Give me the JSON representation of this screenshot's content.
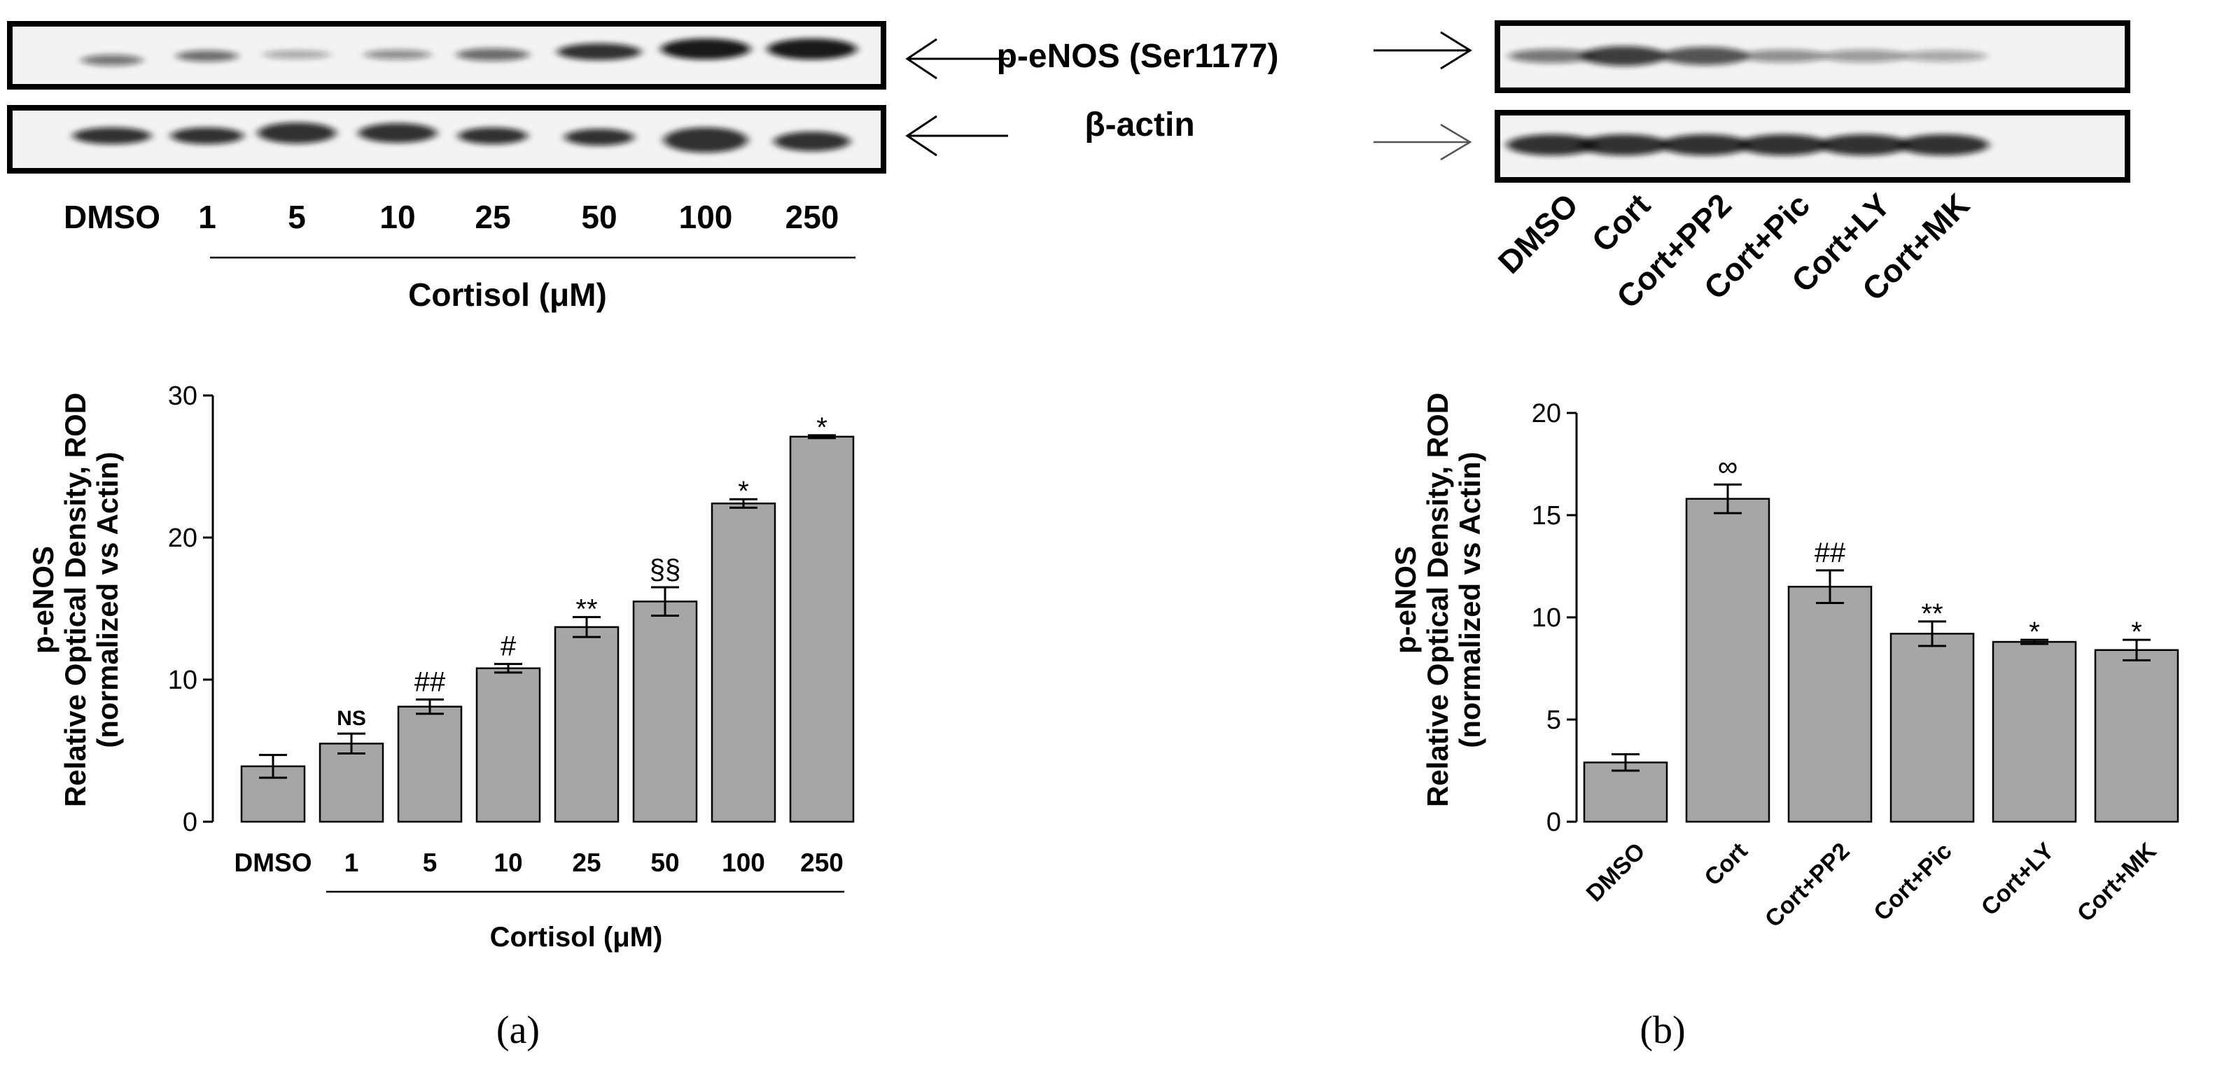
{
  "blot_a": {
    "label_peNOS": "p-eNOS (Ser1177)",
    "label_actin": "β-actin",
    "lane_labels": [
      "DMSO",
      "1",
      "5",
      "10",
      "25",
      "50",
      "100",
      "250"
    ],
    "group_label": "Cortisol (μM)"
  },
  "blot_b": {
    "lane_labels": [
      "DMSO",
      "Cort",
      "Cort+PP2",
      "Cort+Pic",
      "Cort+LY",
      "Cort+MK"
    ]
  },
  "panel_labels": {
    "a": "(a)",
    "b": "(b)"
  },
  "chart_data": [
    {
      "type": "bar",
      "panel": "a",
      "categories": [
        "DMSO",
        "1",
        "5",
        "10",
        "25",
        "50",
        "100",
        "250"
      ],
      "values": [
        3.9,
        5.5,
        8.1,
        10.8,
        13.7,
        15.5,
        22.4,
        27.1
      ],
      "errors": [
        0.8,
        0.7,
        0.5,
        0.3,
        0.7,
        1.0,
        0.3,
        0.1
      ],
      "annotations": [
        "",
        "NS",
        "##",
        "#",
        "**",
        "§§",
        "*",
        "*"
      ],
      "ylabel": [
        "p-eNOS",
        "Relative Optical Density, ROD",
        "(normalized vs Actin)"
      ],
      "xlabel": "Cortisol (μM)",
      "ylim": [
        0,
        30
      ],
      "yticks": [
        0,
        10,
        20,
        30
      ],
      "bar_color": "#a6a6a6"
    },
    {
      "type": "bar",
      "panel": "b",
      "categories": [
        "DMSO",
        "Cort",
        "Cort+PP2",
        "Cort+Pic",
        "Cort+LY",
        "Cort+MK"
      ],
      "values": [
        2.9,
        15.8,
        11.5,
        9.2,
        8.8,
        8.4
      ],
      "errors": [
        0.4,
        0.7,
        0.8,
        0.6,
        0.1,
        0.5
      ],
      "annotations": [
        "",
        "∞",
        "##",
        "**",
        "*",
        "*"
      ],
      "ylabel": [
        "p-eNOS",
        "Relative Optical Density, ROD",
        "(normalized vs Actin)"
      ],
      "xlabel": "",
      "ylim": [
        0,
        20
      ],
      "yticks": [
        0,
        5,
        10,
        15,
        20
      ],
      "bar_color": "#a6a6a6"
    }
  ]
}
